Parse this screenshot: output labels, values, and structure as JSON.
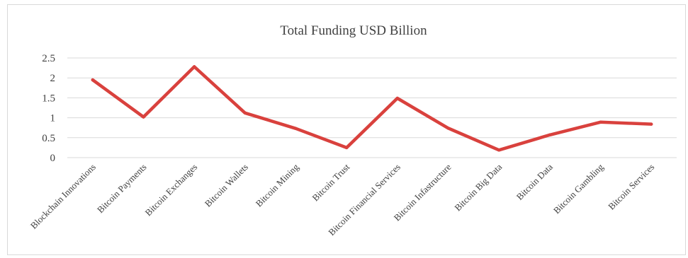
{
  "chart_data": {
    "type": "line",
    "title": "Total Funding USD Billion",
    "xlabel": "",
    "ylabel": "",
    "ylim": [
      0,
      2.5
    ],
    "yticks": [
      0,
      0.5,
      1,
      1.5,
      2,
      2.5
    ],
    "ytick_labels": [
      "0",
      "0.5",
      "1",
      "1.5",
      "2",
      "2.5"
    ],
    "grid": true,
    "legend": "none",
    "categories": [
      "Blockchain Innovations",
      "Bitcoin Payments",
      "Bitcoin Exchanges",
      "Bitcoin Wallets",
      "Bitcoin Mining",
      "Bitcoin Trust",
      "Bitcoin Financial Services",
      "Bitcoin Infastructure",
      "Bitcoin Big Data",
      "Bitcoin Data",
      "Bitcoin Gambling",
      "Bitcoin Services"
    ],
    "series": [
      {
        "values": [
          1.95,
          1.02,
          2.28,
          1.12,
          0.73,
          0.25,
          1.49,
          0.74,
          0.19,
          0.57,
          0.89,
          0.84
        ],
        "color": "#d9413d"
      }
    ],
    "colors": {
      "line": "#d9413d",
      "grid": "#d9d9d9",
      "text": "#404040"
    }
  }
}
